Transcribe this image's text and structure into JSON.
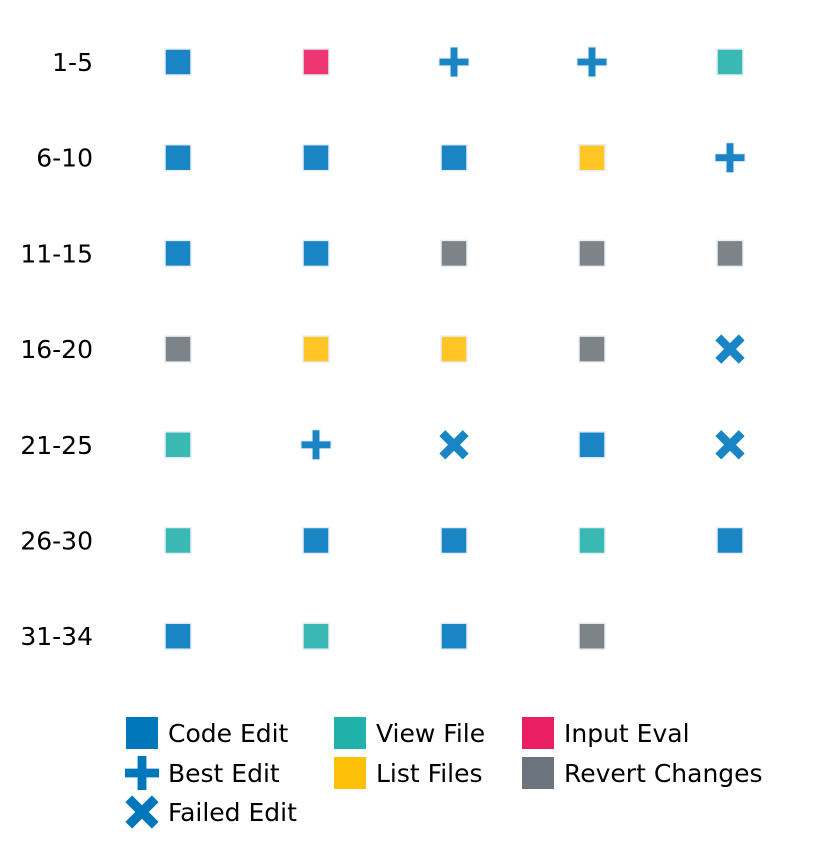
{
  "chart_data": {
    "type": "grid",
    "rows": [
      "1-5",
      "6-10",
      "11-15",
      "16-20",
      "21-25",
      "26-30",
      "31-34"
    ],
    "cells": [
      [
        "code_edit",
        "input_eval",
        "best_edit",
        "best_edit",
        "view_file"
      ],
      [
        "code_edit",
        "code_edit",
        "code_edit",
        "list_files",
        "best_edit"
      ],
      [
        "code_edit",
        "code_edit",
        "revert_changes",
        "revert_changes",
        "revert_changes"
      ],
      [
        "revert_changes",
        "list_files",
        "list_files",
        "revert_changes",
        "failed_edit"
      ],
      [
        "view_file",
        "best_edit",
        "failed_edit",
        "code_edit",
        "failed_edit"
      ],
      [
        "view_file",
        "code_edit",
        "code_edit",
        "view_file",
        "code_edit"
      ],
      [
        "code_edit",
        "view_file",
        "code_edit",
        "revert_changes"
      ]
    ],
    "legend": [
      {
        "key": "code_edit",
        "label": "Code Edit",
        "marker": "square",
        "color": "#0077BB"
      },
      {
        "key": "best_edit",
        "label": "Best Edit",
        "marker": "plus",
        "color": "#0077BB"
      },
      {
        "key": "failed_edit",
        "label": "Failed Edit",
        "marker": "x",
        "color": "#0077BB"
      },
      {
        "key": "view_file",
        "label": "View File",
        "marker": "square",
        "color": "#20B2AA"
      },
      {
        "key": "list_files",
        "label": "List Files",
        "marker": "square",
        "color": "#FFC107"
      },
      {
        "key": "input_eval",
        "label": "Input Eval",
        "marker": "square",
        "color": "#E91E63"
      },
      {
        "key": "revert_changes",
        "label": "Revert Changes",
        "marker": "square",
        "color": "#6C757D"
      }
    ],
    "legend_placement": "bottom"
  }
}
